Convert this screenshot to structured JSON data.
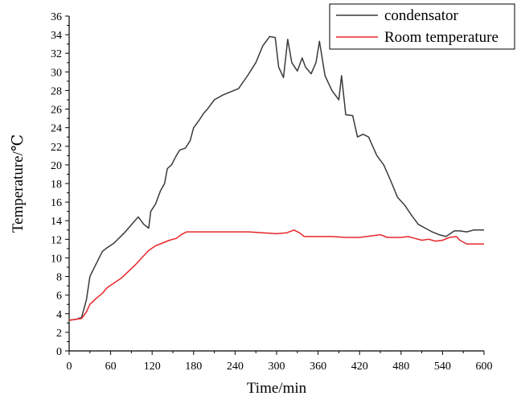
{
  "chart_data": {
    "type": "line",
    "xlabel": "Time/min",
    "ylabel": "Temperature/℃",
    "xlim": [
      0,
      600
    ],
    "ylim": [
      0,
      36
    ],
    "xticks": [
      0,
      60,
      120,
      180,
      240,
      300,
      360,
      420,
      480,
      540,
      600
    ],
    "yticks": [
      0,
      2,
      4,
      6,
      8,
      10,
      12,
      14,
      16,
      18,
      20,
      22,
      24,
      26,
      28,
      30,
      32,
      34,
      36
    ],
    "grid": false,
    "legend": "top-right",
    "series": [
      {
        "name": "condensator",
        "color": "#3a3a3a",
        "points": [
          [
            0,
            3.3
          ],
          [
            10,
            3.4
          ],
          [
            18,
            3.6
          ],
          [
            25,
            5.5
          ],
          [
            30,
            8
          ],
          [
            40,
            9.5
          ],
          [
            48,
            10.7
          ],
          [
            55,
            11.1
          ],
          [
            65,
            11.6
          ],
          [
            80,
            12.7
          ],
          [
            95,
            14
          ],
          [
            100,
            14.4
          ],
          [
            108,
            13.6
          ],
          [
            115,
            13.2
          ],
          [
            118,
            15
          ],
          [
            125,
            15.8
          ],
          [
            132,
            17.2
          ],
          [
            138,
            18
          ],
          [
            142,
            19.6
          ],
          [
            148,
            20
          ],
          [
            155,
            21
          ],
          [
            160,
            21.6
          ],
          [
            168,
            21.8
          ],
          [
            175,
            22.6
          ],
          [
            180,
            24
          ],
          [
            188,
            24.8
          ],
          [
            195,
            25.6
          ],
          [
            200,
            26
          ],
          [
            210,
            27
          ],
          [
            222,
            27.5
          ],
          [
            235,
            27.9
          ],
          [
            245,
            28.2
          ],
          [
            258,
            29.6
          ],
          [
            270,
            31
          ],
          [
            280,
            32.8
          ],
          [
            290,
            33.8
          ],
          [
            298,
            33.7
          ],
          [
            303,
            30.5
          ],
          [
            310,
            29.4
          ],
          [
            316,
            33.5
          ],
          [
            322,
            31
          ],
          [
            330,
            30.1
          ],
          [
            337,
            31.5
          ],
          [
            342,
            30.5
          ],
          [
            350,
            29.8
          ],
          [
            357,
            31
          ],
          [
            362,
            33.3
          ],
          [
            370,
            29.6
          ],
          [
            380,
            28
          ],
          [
            390,
            27
          ],
          [
            394,
            29.6
          ],
          [
            400,
            25.4
          ],
          [
            410,
            25.3
          ],
          [
            417,
            23
          ],
          [
            425,
            23.3
          ],
          [
            433,
            23
          ],
          [
            445,
            21
          ],
          [
            455,
            20
          ],
          [
            465,
            18.3
          ],
          [
            475,
            16.5
          ],
          [
            485,
            15.7
          ],
          [
            495,
            14.6
          ],
          [
            505,
            13.6
          ],
          [
            515,
            13.2
          ],
          [
            525,
            12.8
          ],
          [
            535,
            12.5
          ],
          [
            545,
            12.3
          ],
          [
            557,
            12.9
          ],
          [
            565,
            12.9
          ],
          [
            575,
            12.8
          ],
          [
            585,
            13
          ],
          [
            600,
            13
          ]
        ]
      },
      {
        "name": "Room temperature",
        "color": "#e8262a",
        "points": [
          [
            0,
            3.3
          ],
          [
            10,
            3.4
          ],
          [
            18,
            3.5
          ],
          [
            25,
            4.2
          ],
          [
            30,
            5
          ],
          [
            40,
            5.7
          ],
          [
            48,
            6.2
          ],
          [
            55,
            6.8
          ],
          [
            65,
            7.3
          ],
          [
            75,
            7.8
          ],
          [
            85,
            8.5
          ],
          [
            95,
            9.2
          ],
          [
            105,
            10
          ],
          [
            115,
            10.8
          ],
          [
            125,
            11.3
          ],
          [
            135,
            11.6
          ],
          [
            145,
            11.9
          ],
          [
            155,
            12.1
          ],
          [
            162,
            12.5
          ],
          [
            170,
            12.8
          ],
          [
            180,
            12.8
          ],
          [
            200,
            12.8
          ],
          [
            220,
            12.8
          ],
          [
            240,
            12.8
          ],
          [
            260,
            12.8
          ],
          [
            280,
            12.7
          ],
          [
            300,
            12.6
          ],
          [
            315,
            12.7
          ],
          [
            325,
            13
          ],
          [
            333,
            12.7
          ],
          [
            340,
            12.3
          ],
          [
            360,
            12.3
          ],
          [
            380,
            12.3
          ],
          [
            400,
            12.2
          ],
          [
            420,
            12.2
          ],
          [
            440,
            12.4
          ],
          [
            450,
            12.5
          ],
          [
            460,
            12.2
          ],
          [
            480,
            12.2
          ],
          [
            490,
            12.3
          ],
          [
            500,
            12.1
          ],
          [
            510,
            11.9
          ],
          [
            520,
            12
          ],
          [
            530,
            11.8
          ],
          [
            540,
            11.9
          ],
          [
            550,
            12.2
          ],
          [
            560,
            12.3
          ],
          [
            565,
            11.9
          ],
          [
            575,
            11.5
          ],
          [
            585,
            11.5
          ],
          [
            595,
            11.5
          ],
          [
            600,
            11.5
          ]
        ]
      }
    ]
  }
}
